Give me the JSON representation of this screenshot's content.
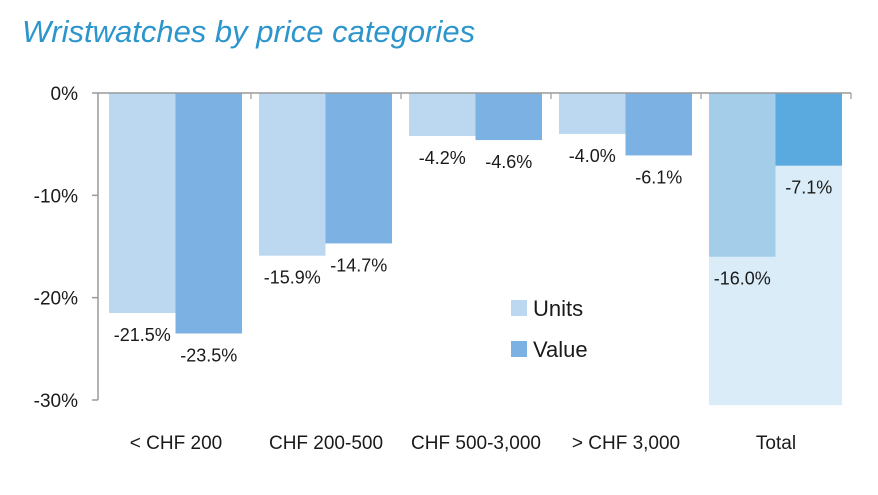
{
  "chart_data": {
    "type": "bar",
    "title": "Wristwatches by price categories",
    "categories": [
      "< CHF 200",
      "CHF 200-500",
      "CHF 500-3,000",
      "> CHF 3,000",
      "Total"
    ],
    "series": [
      {
        "name": "Units",
        "values": [
          -21.5,
          -15.9,
          -4.2,
          -4.0,
          -16.0
        ],
        "labels": [
          "-21.5%",
          "-15.9%",
          "-4.2%",
          "-4.0%",
          "-16.0%"
        ]
      },
      {
        "name": "Value",
        "values": [
          -23.5,
          -14.7,
          -4.6,
          -6.1,
          -7.1
        ],
        "labels": [
          "-23.5%",
          "-14.7%",
          "-4.6%",
          "-6.1%",
          "-7.1%"
        ]
      }
    ],
    "yticks": [
      0,
      -10,
      -20,
      -30
    ],
    "ytick_labels": [
      "0%",
      "-10%",
      "-20%",
      "-30%"
    ],
    "ylim": [
      -30,
      0
    ],
    "xlabel": "",
    "ylabel": "",
    "grid": false,
    "legend_position": "center",
    "total_background_highlight": true,
    "colors": {
      "title": "#2b95cc",
      "units": "#bcd8f0",
      "value": "#7cb2e3",
      "total_units": "#a4cdea",
      "total_value": "#5aa9df",
      "total_background": "#daecf8",
      "axis": "#9a9a9a"
    }
  }
}
